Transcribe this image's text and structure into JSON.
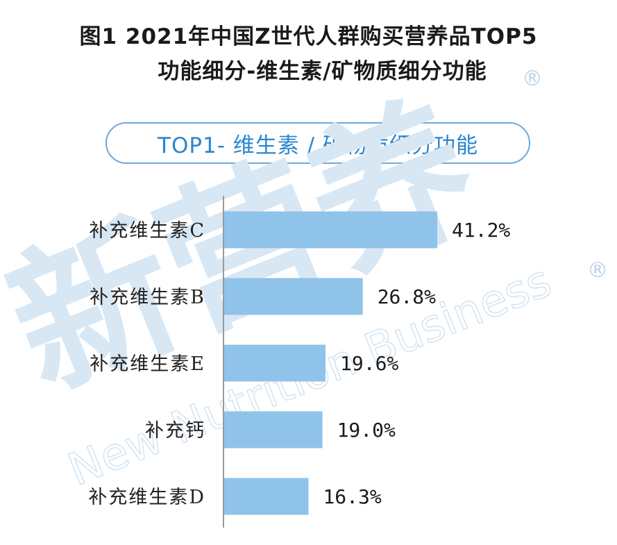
{
  "title": {
    "line1": "图1 2021年中国Z世代人群购买营养品TOP5",
    "line2": "功能细分-维生素/矿物质细分功能"
  },
  "subtitle": "TOP1- 维生素 / 矿物质细分功能",
  "watermark": {
    "text_cn": "新营养",
    "text_en": "New Nutrition Business",
    "registered_mark": "®"
  },
  "colors": {
    "bar": "#8fc3ea",
    "axis": "#999999",
    "pill_border": "#6fa8d9",
    "subtitle_text": "#2a86cf"
  },
  "chart_data": {
    "type": "bar",
    "orientation": "horizontal",
    "title": "图1 2021年中国Z世代人群购买营养品TOP5 功能细分-维生素/矿物质细分功能",
    "categories": [
      "补充维生素C",
      "补充维生素B",
      "补充维生素E",
      "补充钙",
      "补充维生素D"
    ],
    "values": [
      41.2,
      26.8,
      19.6,
      19.0,
      16.3
    ],
    "value_labels": [
      "41.2%",
      "26.8%",
      "19.6%",
      "19.0%",
      "16.3%"
    ],
    "unit": "%",
    "xlim": [
      0,
      41.2
    ],
    "grid": false,
    "legend": "none"
  }
}
